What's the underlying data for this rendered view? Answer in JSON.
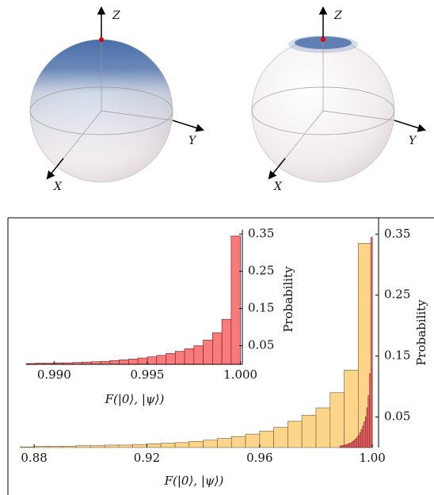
{
  "spheres": [
    {
      "axis_labels": {
        "x": "X",
        "y": "Y",
        "z": "Z"
      }
    },
    {
      "axis_labels": {
        "x": "X",
        "y": "Y",
        "z": "Z"
      }
    }
  ],
  "chart_data": [
    {
      "type": "histogram",
      "xlabel": "F(|0⟩, |ψ⟩)",
      "ylabel": "Probability",
      "bins": [
        0.875,
        0.88,
        0.885,
        0.89,
        0.895,
        0.9,
        0.905,
        0.91,
        0.915,
        0.92,
        0.925,
        0.93,
        0.935,
        0.94,
        0.945,
        0.95,
        0.955,
        0.96,
        0.965,
        0.97,
        0.975,
        0.98,
        0.985,
        0.99,
        0.995,
        1.0
      ],
      "values": [
        0.001,
        0.002,
        0.002,
        0.002,
        0.003,
        0.003,
        0.004,
        0.004,
        0.005,
        0.006,
        0.007,
        0.008,
        0.01,
        0.012,
        0.015,
        0.018,
        0.022,
        0.027,
        0.033,
        0.043,
        0.053,
        0.065,
        0.09,
        0.127,
        0.335
      ],
      "color": "#fdd58a",
      "edgecolor": "#6b5a3a",
      "xlim": [
        0.8707,
        1.0022
      ],
      "ylim": [
        0,
        0.377
      ],
      "xticks": [
        0.88,
        0.92,
        0.96,
        {
          "value": 1,
          "label": "1.00"
        }
      ],
      "yticks": [
        0.05,
        0.15,
        0.25,
        0.35
      ]
    },
    {
      "type": "histogram",
      "xlabel": "F(|0⟩, |ψ⟩)",
      "ylabel": "Probability",
      "bins": [
        0.9885,
        0.989,
        0.9895,
        0.99,
        0.9905,
        0.991,
        0.9915,
        0.992,
        0.9925,
        0.993,
        0.9935,
        0.994,
        0.9945,
        0.995,
        0.9955,
        0.996,
        0.9965,
        0.997,
        0.9975,
        0.998,
        0.9985,
        0.999,
        0.9995,
        1.0
      ],
      "values": [
        0.002,
        0.003,
        0.003,
        0.004,
        0.004,
        0.005,
        0.006,
        0.007,
        0.008,
        0.01,
        0.012,
        0.014,
        0.017,
        0.02,
        0.024,
        0.029,
        0.035,
        0.042,
        0.05,
        0.065,
        0.085,
        0.121,
        0.345
      ],
      "color": "#f77b7b",
      "edgecolor": "#7a1414",
      "xlim": [
        0.9885,
        1.0001
      ],
      "ylim": [
        0,
        0.362
      ],
      "xticks": [
        {
          "value": 0.99,
          "label": "0.990"
        },
        0.995,
        {
          "value": 1,
          "label": "1.000"
        }
      ],
      "yticks": [
        0.05,
        0.15,
        0.25,
        0.35
      ]
    }
  ]
}
